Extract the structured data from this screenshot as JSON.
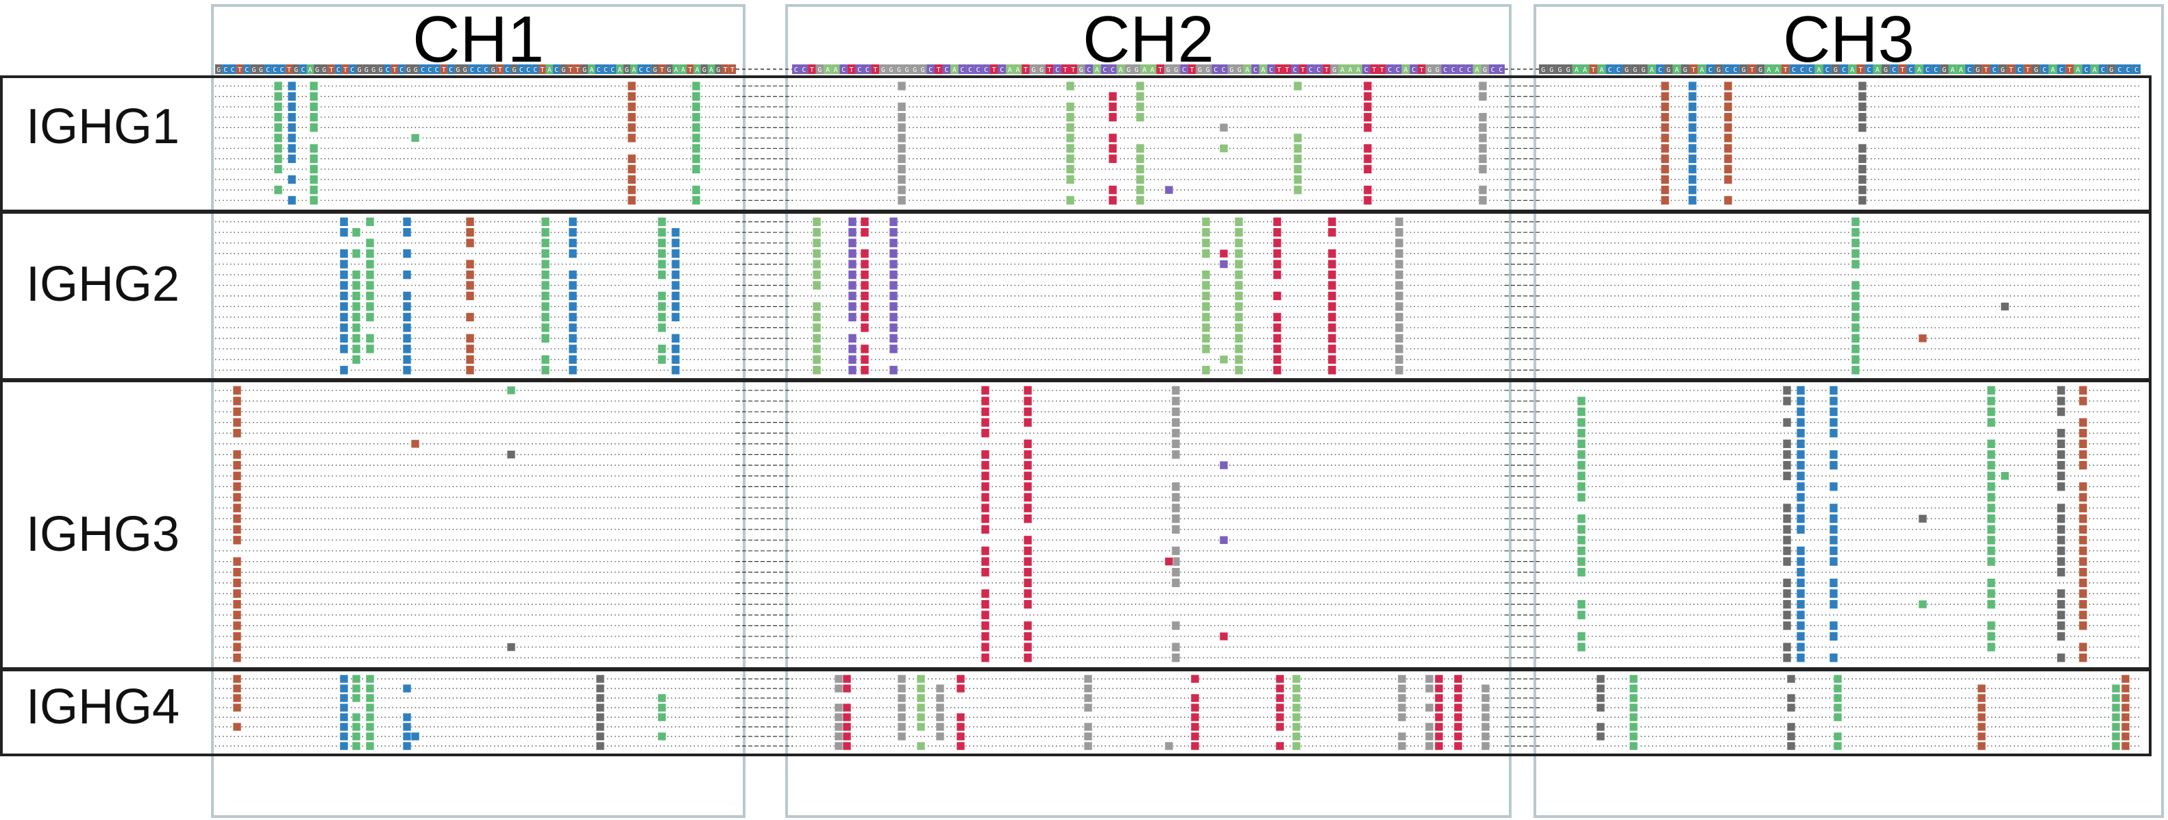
{
  "domains": [
    {
      "id": "ch1",
      "label": "CH1",
      "color": "#c6ebf9"
    },
    {
      "id": "ch2",
      "label": "CH2",
      "color": "#fac8e4"
    },
    {
      "id": "ch3",
      "label": "CH3",
      "color": "#c5e9d6"
    }
  ],
  "groups": [
    {
      "id": "ighg1",
      "label": "IGHG1"
    },
    {
      "id": "ighg2",
      "label": "IGHG2"
    },
    {
      "id": "ighg3",
      "label": "IGHG3"
    },
    {
      "id": "ighg4",
      "label": "IGHG4"
    }
  ],
  "consensus": {
    "ch1": "GCCTCGGCCCTGCAGGTCTCGGGGCTCGGCCCTCGGCCCGTCGCCCTACGTTGACCCAGACCGTGAATAGAGTT",
    "ch2": "CCTGAACTCCTGGGGGGCTCACCCCTCAATGGTCTTGCACCAGGAATGGCTGGCCGGACACTTCTCCTGAAACTTCCACTGGCCCCAGCC",
    "ch3": "GGGGAATACCGGGACGAGTACGCCGTGAATCCCACGCATCAGCTCACCGAACGTCGTCTGCACTACACGCCC"
  },
  "base_colors": {
    "A": "#5dbb77",
    "C": "#2e7fbf",
    "G": "#6b6b6b",
    "T": "#b85a3f",
    "G_ch2": "#9a9a9a",
    "T_ch2": "#d3284e",
    "C_ch2": "#7a5fbf",
    "A_ch2": "#8cc47c"
  }
}
